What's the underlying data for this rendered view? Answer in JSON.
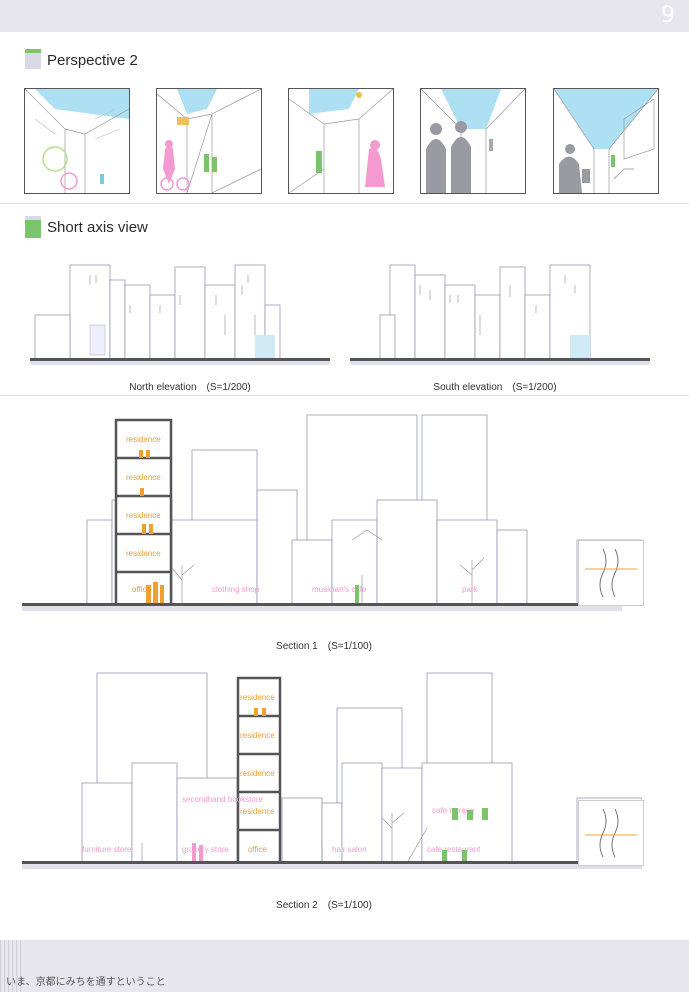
{
  "header": {
    "page_number": "9"
  },
  "sections": {
    "perspective_title": "Perspective 2",
    "short_axis_title": "Short  axis view"
  },
  "captions": {
    "north": "North elevation　(S=1/200)",
    "south": "South elevation　(S=1/200)",
    "section1": "Section 1　(S=1/100)",
    "section2": "Section 2　(S=1/100)"
  },
  "section1_labels": {
    "residence": "residence",
    "office": "office",
    "clothing_shop": "clothing shop",
    "musician_cafe": "musician's cafe",
    "park": "park"
  },
  "section2_labels": {
    "residence": "residence",
    "secondhand_bookstore": "secondhand\nbookstore",
    "furniture_store": "furniture store",
    "grocery_store": "grocery store",
    "office": "office",
    "hair_salon": "hair salon",
    "cafe_restaurant": "cafe restaurant",
    "care_terrace": "cafe terrace"
  },
  "footer": {
    "text": "いま、京都にみちを通すということ"
  },
  "colors": {
    "accent_green": "#7cc46c",
    "accent_pink": "#f59ad0",
    "accent_orange": "#f0a030",
    "sky_blue": "#aee0f4"
  }
}
